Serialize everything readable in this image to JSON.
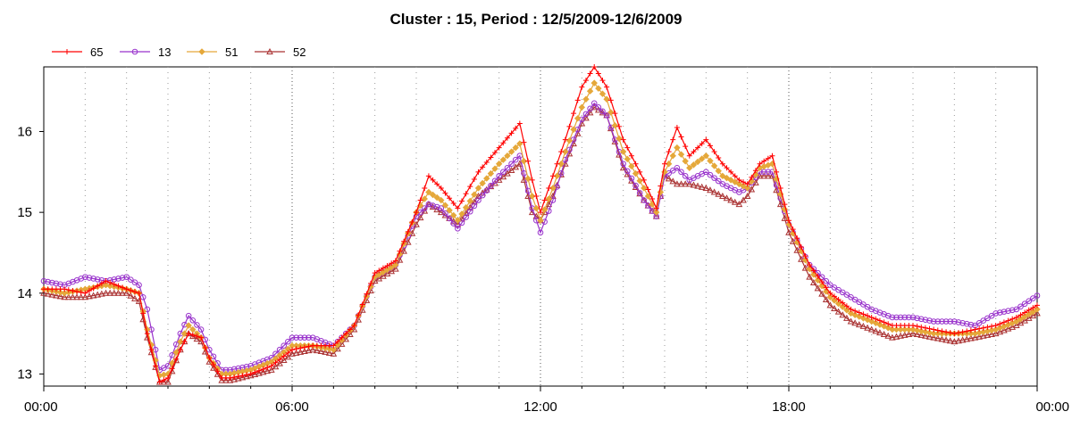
{
  "chart_data": {
    "type": "line",
    "title": "Cluster : 15, Period : 12/5/2009-12/6/2009",
    "xlabel": "",
    "ylabel": "",
    "x_ticks": [
      "00:00",
      "06:00",
      "12:00",
      "18:00",
      "00:00"
    ],
    "x_tick_hours": [
      0,
      6,
      12,
      18,
      24
    ],
    "xlim_hours": [
      0,
      24
    ],
    "ylim": [
      12.85,
      16.8
    ],
    "y_ticks": [
      13,
      14,
      15,
      16
    ],
    "grid": true,
    "legend_position": "top-left",
    "x_hours": [
      0,
      0.5,
      1,
      1.5,
      2,
      2.3,
      2.5,
      2.8,
      3,
      3.3,
      3.5,
      3.8,
      4,
      4.3,
      4.5,
      5,
      5.5,
      6,
      6.5,
      7,
      7.5,
      8,
      8.5,
      9,
      9.3,
      9.6,
      10,
      10.5,
      11,
      11.5,
      11.8,
      12,
      12.3,
      12.6,
      13,
      13.3,
      13.6,
      14,
      14.5,
      14.8,
      15,
      15.3,
      15.6,
      16,
      16.4,
      16.8,
      17,
      17.3,
      17.6,
      18,
      18.5,
      19,
      19.5,
      20,
      20.5,
      21,
      21.5,
      22,
      22.5,
      23,
      23.5,
      24
    ],
    "series": [
      {
        "name": "65",
        "color": "#ff0000",
        "marker": "plus",
        "values": [
          14.05,
          14.05,
          14.0,
          14.15,
          14.05,
          14.0,
          13.5,
          12.9,
          12.95,
          13.3,
          13.5,
          13.45,
          13.2,
          12.95,
          12.95,
          13.0,
          13.1,
          13.3,
          13.35,
          13.35,
          13.6,
          14.25,
          14.4,
          15.0,
          15.45,
          15.3,
          15.05,
          15.5,
          15.8,
          16.1,
          15.4,
          15.0,
          15.45,
          15.9,
          16.55,
          16.8,
          16.55,
          15.9,
          15.4,
          15.05,
          15.6,
          16.05,
          15.7,
          15.9,
          15.6,
          15.4,
          15.35,
          15.6,
          15.7,
          14.9,
          14.35,
          14.0,
          13.8,
          13.7,
          13.6,
          13.6,
          13.55,
          13.5,
          13.55,
          13.6,
          13.7,
          13.85
        ]
      },
      {
        "name": "13",
        "color": "#9933cc",
        "marker": "circle",
        "values": [
          14.15,
          14.1,
          14.2,
          14.15,
          14.2,
          14.1,
          13.8,
          13.05,
          13.1,
          13.5,
          13.72,
          13.55,
          13.3,
          13.05,
          13.05,
          13.1,
          13.2,
          13.45,
          13.45,
          13.35,
          13.6,
          14.2,
          14.35,
          14.95,
          15.1,
          15.05,
          14.8,
          15.15,
          15.45,
          15.7,
          15.05,
          14.75,
          15.15,
          15.65,
          16.15,
          16.35,
          16.2,
          15.6,
          15.15,
          14.95,
          15.45,
          15.55,
          15.4,
          15.5,
          15.35,
          15.25,
          15.3,
          15.5,
          15.5,
          14.85,
          14.35,
          14.1,
          13.95,
          13.8,
          13.7,
          13.7,
          13.65,
          13.65,
          13.6,
          13.75,
          13.8,
          13.97
        ]
      },
      {
        "name": "51",
        "color": "#e5a83a",
        "marker": "diamond",
        "values": [
          14.05,
          14.0,
          14.05,
          14.1,
          14.05,
          14.0,
          13.55,
          12.98,
          13.0,
          13.4,
          13.6,
          13.45,
          13.2,
          13.0,
          13.0,
          13.05,
          13.15,
          13.35,
          13.35,
          13.3,
          13.6,
          14.2,
          14.35,
          15.0,
          15.25,
          15.15,
          14.9,
          15.3,
          15.6,
          15.85,
          15.2,
          14.9,
          15.3,
          15.75,
          16.3,
          16.6,
          16.4,
          15.75,
          15.3,
          15.0,
          15.5,
          15.8,
          15.55,
          15.7,
          15.45,
          15.35,
          15.3,
          15.55,
          15.6,
          14.85,
          14.3,
          13.95,
          13.75,
          13.65,
          13.55,
          13.55,
          13.5,
          13.5,
          13.5,
          13.55,
          13.65,
          13.8
        ]
      },
      {
        "name": "52",
        "color": "#aa3333",
        "marker": "triangle",
        "values": [
          14.0,
          13.95,
          13.95,
          14.0,
          14.0,
          13.9,
          13.45,
          12.9,
          12.9,
          13.3,
          13.5,
          13.4,
          13.15,
          12.92,
          12.92,
          12.98,
          13.05,
          13.25,
          13.3,
          13.25,
          13.55,
          14.15,
          14.3,
          14.85,
          15.1,
          15.0,
          14.85,
          15.2,
          15.4,
          15.6,
          15.0,
          14.9,
          15.2,
          15.6,
          16.1,
          16.3,
          16.2,
          15.55,
          15.15,
          14.95,
          15.45,
          15.35,
          15.35,
          15.3,
          15.2,
          15.1,
          15.2,
          15.45,
          15.45,
          14.75,
          14.2,
          13.85,
          13.65,
          13.55,
          13.45,
          13.5,
          13.45,
          13.4,
          13.45,
          13.5,
          13.6,
          13.75
        ]
      }
    ]
  }
}
